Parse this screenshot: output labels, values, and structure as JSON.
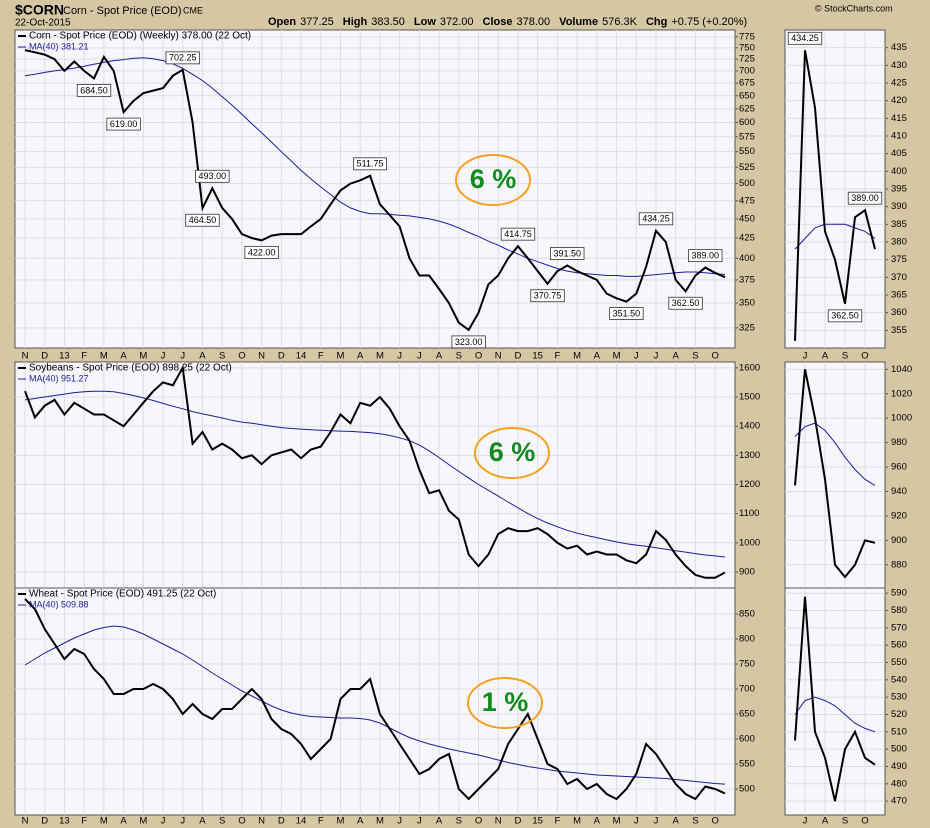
{
  "header": {
    "symbol": "$CORN",
    "name": "Corn - Spot Price (EOD)",
    "exchange": "CME",
    "date": "22-Oct-2015",
    "copyright": "© StockCharts.com",
    "stats": [
      {
        "label": "Open",
        "value": "377.25"
      },
      {
        "label": "High",
        "value": "383.50"
      },
      {
        "label": "Low",
        "value": "372.00"
      },
      {
        "label": "Close",
        "value": "378.00"
      },
      {
        "label": "Volume",
        "value": "576.3K"
      },
      {
        "label": "Chg",
        "value": "+0.75 (+0.20%)"
      }
    ]
  },
  "chart_data": [
    {
      "type": "line",
      "log": true,
      "grid": true,
      "x_labels": true,
      "note": "6 %",
      "categories": [
        "N",
        null,
        "D",
        null,
        "13",
        null,
        "F",
        null,
        "M",
        null,
        "A",
        null,
        "M",
        null,
        "J",
        null,
        "J",
        null,
        "A",
        null,
        "S",
        null,
        "O",
        null,
        "N",
        null,
        "D",
        null,
        "14",
        null,
        "F",
        null,
        "M",
        null,
        "A",
        null,
        "M",
        null,
        "J",
        null,
        "J",
        null,
        "A",
        null,
        "S",
        null,
        "O",
        null,
        "N",
        null,
        "D",
        null,
        "15",
        null,
        "F",
        null,
        "M",
        null,
        "A",
        null,
        "M",
        null,
        "J",
        null,
        "J",
        null,
        "A",
        null,
        "S",
        null,
        "O",
        null
      ],
      "series": [
        {
          "name": "Corn - Spot Price (EOD) (Weekly) 378.00 (22 Oct)",
          "color": "#000000",
          "values": [
            745,
            740,
            735,
            725,
            700,
            720,
            700,
            684.5,
            730,
            700,
            619,
            640,
            655,
            660,
            665,
            690,
            702.25,
            600,
            464.5,
            493,
            465,
            450,
            430,
            425,
            422,
            428,
            430,
            430,
            430,
            440,
            450,
            470,
            490,
            500,
            505,
            511.75,
            470,
            455,
            440,
            400,
            380,
            380,
            365,
            350,
            330,
            323,
            340,
            370,
            380,
            400,
            414.75,
            400,
            385,
            370.75,
            385,
            391.5,
            385,
            380,
            375,
            360,
            355,
            351.5,
            360,
            390,
            434.25,
            420,
            375,
            362.5,
            380,
            389,
            383,
            378
          ],
          "value_labels": [
            null,
            null,
            null,
            null,
            null,
            null,
            null,
            "684.50",
            null,
            null,
            "619.00",
            null,
            null,
            null,
            null,
            null,
            "702.25",
            null,
            "464.50",
            "493.00",
            null,
            null,
            null,
            null,
            "422.00",
            null,
            null,
            null,
            null,
            null,
            null,
            null,
            null,
            null,
            null,
            "511.75",
            null,
            null,
            null,
            null,
            null,
            null,
            null,
            null,
            null,
            "323.00",
            null,
            null,
            null,
            null,
            "414.75",
            null,
            null,
            "370.75",
            null,
            "391.50",
            null,
            null,
            null,
            null,
            null,
            "351.50",
            null,
            null,
            "434.25",
            null,
            null,
            "362.50",
            null,
            "389.00",
            null,
            null
          ]
        },
        {
          "name": "MA(40) 381.21",
          "color": "#1c1c9c",
          "values": [
            690,
            693,
            697,
            700,
            703,
            706,
            710,
            714,
            718,
            722,
            724,
            727,
            728,
            726,
            722,
            715,
            705,
            693,
            680,
            665,
            648,
            632,
            615,
            598,
            582,
            566,
            550,
            535,
            520,
            507,
            495,
            484,
            473,
            465,
            460,
            457,
            457,
            456,
            455,
            454,
            452,
            450,
            447,
            443,
            438,
            432,
            427,
            421,
            416,
            410,
            405,
            400,
            396,
            392,
            388,
            385,
            383,
            382,
            381,
            380,
            380,
            379,
            379,
            380,
            381,
            382,
            383,
            384,
            384,
            383,
            382,
            381.21
          ]
        }
      ],
      "ylim": [
        306,
        791
      ],
      "yticks": [
        325,
        350,
        375,
        400,
        425,
        450,
        475,
        500,
        525,
        550,
        575,
        600,
        625,
        650,
        675,
        700,
        725,
        750,
        775
      ]
    },
    {
      "type": "line",
      "log": false,
      "grid": true,
      "x_labels": true,
      "categories": [
        null,
        "J",
        null,
        "A",
        null,
        "S",
        null,
        "O",
        null
      ],
      "series": [
        {
          "color": "#000000",
          "values": [
            352,
            434.25,
            418,
            383,
            375,
            362.5,
            387,
            389,
            378
          ],
          "value_labels": [
            null,
            "434.25",
            null,
            null,
            null,
            "362.50",
            null,
            "389.00",
            null
          ]
        },
        {
          "color": "#1c1c9c",
          "values": [
            378,
            381,
            384,
            385,
            385,
            385,
            384,
            383,
            381
          ]
        }
      ],
      "ylim": [
        350,
        440
      ],
      "yticks": [
        355,
        360,
        365,
        370,
        375,
        380,
        385,
        390,
        395,
        400,
        405,
        410,
        415,
        420,
        425,
        430,
        435
      ]
    },
    {
      "type": "line",
      "log": false,
      "grid": true,
      "x_labels": false,
      "note": "6 %",
      "categories": [
        "N",
        null,
        "D",
        null,
        "13",
        null,
        "F",
        null,
        "M",
        null,
        "A",
        null,
        "M",
        null,
        "J",
        null,
        "J",
        null,
        "A",
        null,
        "S",
        null,
        "O",
        null,
        "N",
        null,
        "D",
        null,
        "14",
        null,
        "F",
        null,
        "M",
        null,
        "A",
        null,
        "M",
        null,
        "J",
        null,
        "J",
        null,
        "A",
        null,
        "S",
        null,
        "O",
        null,
        "N",
        null,
        "D",
        null,
        "15",
        null,
        "F",
        null,
        "M",
        null,
        "A",
        null,
        "M",
        null,
        "J",
        null,
        "J",
        null,
        "A",
        null,
        "S",
        null,
        "O",
        null
      ],
      "series": [
        {
          "name": "Soybeans - Spot Price (EOD) 898.25 (22 Oct)",
          "color": "#000000",
          "values": [
            1520,
            1430,
            1470,
            1490,
            1440,
            1480,
            1460,
            1440,
            1440,
            1420,
            1400,
            1440,
            1480,
            1520,
            1550,
            1540,
            1600,
            1340,
            1380,
            1320,
            1340,
            1320,
            1290,
            1300,
            1270,
            1300,
            1310,
            1320,
            1290,
            1320,
            1330,
            1380,
            1440,
            1410,
            1480,
            1470,
            1500,
            1460,
            1400,
            1350,
            1250,
            1170,
            1180,
            1110,
            1080,
            960,
            920,
            960,
            1030,
            1050,
            1040,
            1040,
            1050,
            1030,
            1000,
            980,
            990,
            960,
            970,
            960,
            960,
            940,
            930,
            960,
            1040,
            1010,
            960,
            920,
            890,
            880,
            880,
            898.25
          ]
        },
        {
          "name": "MA(40) 951.27",
          "color": "#1c1c9c",
          "values": [
            1490,
            1495,
            1500,
            1505,
            1510,
            1515,
            1518,
            1520,
            1520,
            1518,
            1512,
            1505,
            1497,
            1488,
            1478,
            1468,
            1460,
            1450,
            1442,
            1435,
            1428,
            1420,
            1414,
            1410,
            1405,
            1400,
            1395,
            1392,
            1390,
            1388,
            1386,
            1384,
            1383,
            1382,
            1380,
            1378,
            1374,
            1368,
            1360,
            1350,
            1335,
            1315,
            1292,
            1268,
            1245,
            1222,
            1200,
            1180,
            1160,
            1140,
            1120,
            1100,
            1083,
            1068,
            1055,
            1043,
            1033,
            1025,
            1018,
            1010,
            1003,
            997,
            992,
            988,
            983,
            978,
            973,
            968,
            963,
            958,
            955,
            951.27
          ]
        }
      ],
      "ylim": [
        845,
        1620
      ],
      "yticks": [
        900,
        1000,
        1100,
        1200,
        1300,
        1400,
        1500,
        1600
      ]
    },
    {
      "type": "line",
      "log": false,
      "grid": true,
      "x_labels": false,
      "categories": [
        null,
        "J",
        null,
        "A",
        null,
        "S",
        null,
        "O",
        null
      ],
      "series": [
        {
          "color": "#000000",
          "values": [
            945,
            1040,
            1000,
            950,
            880,
            870,
            880,
            900,
            898
          ]
        },
        {
          "color": "#1c1c9c",
          "values": [
            985,
            993,
            996,
            990,
            980,
            968,
            958,
            950,
            945
          ]
        }
      ],
      "ylim": [
        861,
        1046
      ],
      "yticks": [
        880,
        900,
        920,
        940,
        960,
        980,
        1000,
        1020,
        1040
      ]
    },
    {
      "type": "line",
      "log": false,
      "grid": true,
      "x_labels": true,
      "note": "1 %",
      "categories": [
        "N",
        null,
        "D",
        null,
        "13",
        null,
        "F",
        null,
        "M",
        null,
        "A",
        null,
        "M",
        null,
        "J",
        null,
        "J",
        null,
        "A",
        null,
        "S",
        null,
        "O",
        null,
        "N",
        null,
        "D",
        null,
        "14",
        null,
        "F",
        null,
        "M",
        null,
        "A",
        null,
        "M",
        null,
        "J",
        null,
        "J",
        null,
        "A",
        null,
        "S",
        null,
        "O",
        null,
        "N",
        null,
        "D",
        null,
        "15",
        null,
        "F",
        null,
        "M",
        null,
        "A",
        null,
        "M",
        null,
        "J",
        null,
        "J",
        null,
        "A",
        null,
        "S",
        null,
        "O",
        null
      ],
      "series": [
        {
          "name": "Wheat - Spot Price (EOD) 491.25 (22 Oct)",
          "color": "#000000",
          "values": [
            880,
            860,
            820,
            790,
            760,
            780,
            770,
            740,
            720,
            690,
            690,
            700,
            700,
            710,
            700,
            680,
            650,
            670,
            650,
            640,
            660,
            660,
            680,
            700,
            680,
            640,
            620,
            610,
            590,
            560,
            580,
            600,
            680,
            700,
            700,
            720,
            650,
            620,
            590,
            560,
            530,
            540,
            560,
            570,
            500,
            480,
            500,
            520,
            540,
            590,
            620,
            650,
            600,
            550,
            540,
            510,
            520,
            500,
            510,
            490,
            480,
            500,
            530,
            590,
            570,
            540,
            510,
            490,
            480,
            505,
            500,
            491.25
          ]
        },
        {
          "name": "MA(40) 509.88",
          "color": "#1c1c9c",
          "values": [
            748,
            760,
            772,
            782,
            792,
            802,
            810,
            818,
            823,
            826,
            824,
            818,
            810,
            800,
            790,
            780,
            770,
            758,
            745,
            732,
            720,
            708,
            696,
            686,
            676,
            666,
            658,
            652,
            648,
            645,
            644,
            643,
            642,
            642,
            641,
            638,
            632,
            622,
            612,
            603,
            596,
            590,
            585,
            580,
            576,
            572,
            568,
            563,
            558,
            553,
            549,
            545,
            542,
            539,
            536,
            534,
            532,
            530,
            528,
            527,
            526,
            525,
            524,
            523,
            522,
            521,
            519,
            517,
            515,
            513,
            511,
            509.88
          ]
        }
      ],
      "ylim": [
        448,
        902
      ],
      "yticks": [
        500,
        550,
        600,
        650,
        700,
        750,
        800,
        850
      ]
    },
    {
      "type": "line",
      "log": false,
      "grid": true,
      "x_labels": true,
      "categories": [
        null,
        "J",
        null,
        "A",
        null,
        "S",
        null,
        "O",
        null
      ],
      "series": [
        {
          "color": "#000000",
          "values": [
            505,
            588,
            510,
            495,
            470,
            500,
            510,
            495,
            491
          ]
        },
        {
          "color": "#1c1c9c",
          "values": [
            520,
            528,
            530,
            528,
            525,
            520,
            515,
            512,
            510
          ]
        }
      ],
      "ylim": [
        462,
        593
      ],
      "yticks": [
        470,
        480,
        490,
        500,
        510,
        520,
        530,
        540,
        550,
        560,
        570,
        580,
        590
      ]
    }
  ]
}
